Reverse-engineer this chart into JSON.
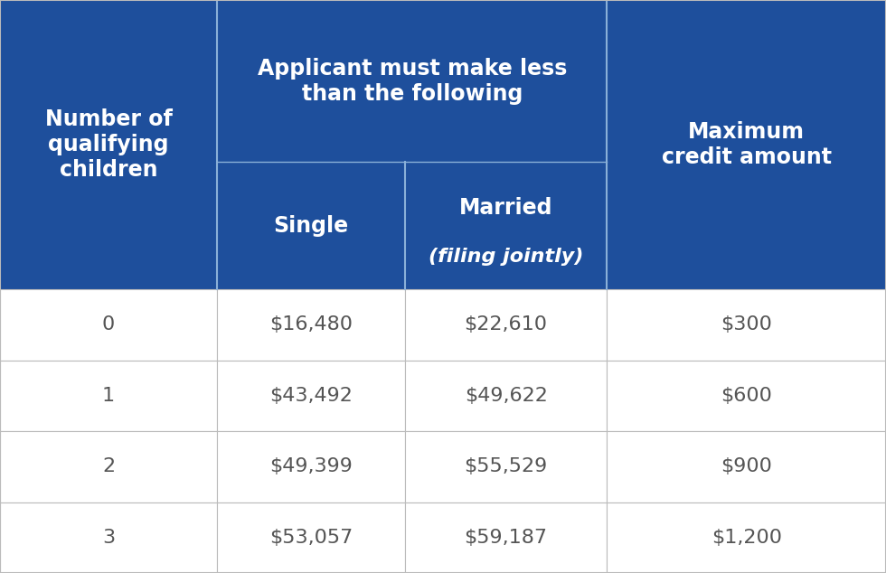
{
  "header_bg_color": "#1e4f9c",
  "header_text_color": "#ffffff",
  "body_bg_color": "#ffffff",
  "body_text_color": "#555555",
  "grid_color": "#bbbbbb",
  "col1_header": "Number of\nqualifying\nchildren",
  "col2_header": "Applicant must make less\nthan the following",
  "col3_header": "Maximum\ncredit amount",
  "sub_col2a": "Single",
  "sub_col2b_line1": "Married",
  "sub_col2b_line2": "(filing jointly)",
  "rows": [
    [
      "0",
      "$16,480",
      "$22,610",
      "$300"
    ],
    [
      "1",
      "$43,492",
      "$49,622",
      "$600"
    ],
    [
      "2",
      "$49,399",
      "$55,529",
      "$900"
    ],
    [
      "3",
      "$53,057",
      "$59,187",
      "$1,200"
    ]
  ],
  "fig_width": 9.8,
  "fig_height": 6.34
}
